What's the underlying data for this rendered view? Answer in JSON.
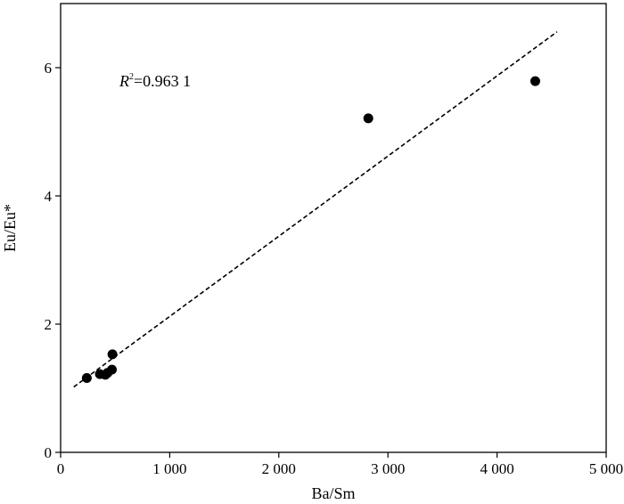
{
  "chart_data": {
    "type": "scatter",
    "xlabel": "Ba/Sm",
    "ylabel": "Eu/Eu*",
    "xlim": [
      0,
      5000
    ],
    "ylim": [
      0,
      7
    ],
    "x_ticks": [
      0,
      1000,
      2000,
      3000,
      4000,
      5000
    ],
    "x_tick_labels": [
      "0",
      "1 000",
      "2 000",
      "3 000",
      "4 000",
      "5 000"
    ],
    "y_ticks": [
      0,
      2,
      4,
      6
    ],
    "y_tick_labels": [
      "0",
      "2",
      "4",
      "6"
    ],
    "points": [
      {
        "x": 240,
        "y": 1.16
      },
      {
        "x": 360,
        "y": 1.22
      },
      {
        "x": 410,
        "y": 1.21
      },
      {
        "x": 430,
        "y": 1.24
      },
      {
        "x": 470,
        "y": 1.29
      },
      {
        "x": 475,
        "y": 1.53
      },
      {
        "x": 2820,
        "y": 5.21
      },
      {
        "x": 4350,
        "y": 5.79
      }
    ],
    "trendline": {
      "style": "dashed",
      "x": [
        120,
        4550
      ],
      "y": [
        1.02,
        6.56
      ]
    },
    "annotation": {
      "prefix": "R",
      "superscript": "2",
      "text": "=0.963 1"
    },
    "grid": false,
    "colors": {
      "marker": "#000000",
      "line": "#000000",
      "axis": "#000000"
    }
  }
}
